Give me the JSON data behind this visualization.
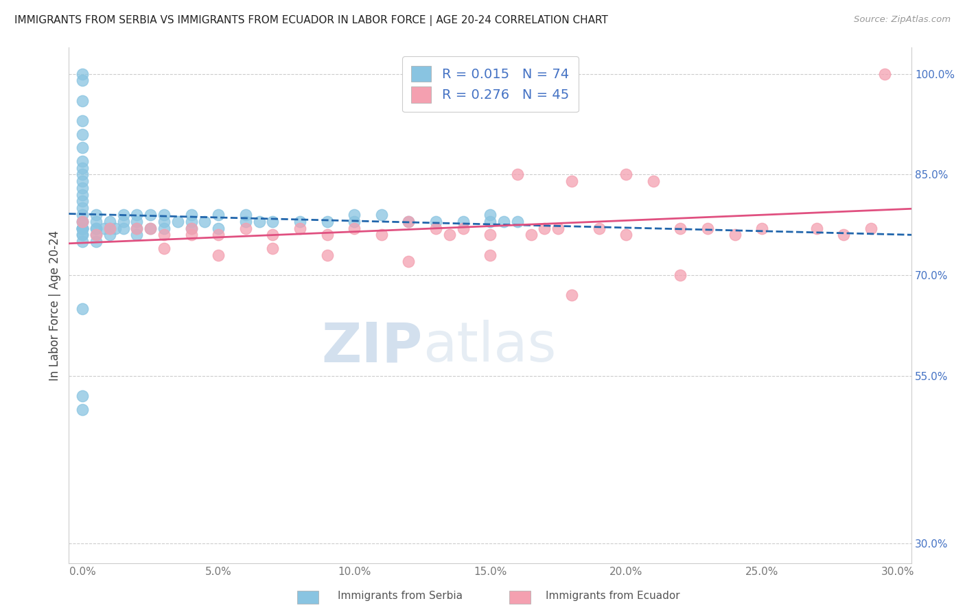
{
  "title": "IMMIGRANTS FROM SERBIA VS IMMIGRANTS FROM ECUADOR IN LABOR FORCE | AGE 20-24 CORRELATION CHART",
  "source": "Source: ZipAtlas.com",
  "ylabel": "In Labor Force | Age 20-24",
  "serbia_color": "#89c4e1",
  "ecuador_color": "#f4a0b0",
  "serbia_line_color": "#2166ac",
  "ecuador_line_color": "#e05080",
  "serbia_R": 0.015,
  "serbia_N": 74,
  "ecuador_R": 0.276,
  "ecuador_N": 45,
  "xlim": [
    -0.005,
    0.305
  ],
  "ylim": [
    0.27,
    1.04
  ],
  "xticks": [
    0.0,
    0.05,
    0.1,
    0.15,
    0.2,
    0.25,
    0.3
  ],
  "xticklabels": [
    "0.0%",
    "5.0%",
    "10.0%",
    "15.0%",
    "20.0%",
    "25.0%",
    "30.0%"
  ],
  "yticks_right": [
    0.3,
    0.55,
    0.7,
    0.85,
    1.0
  ],
  "yticklabels_right": [
    "30.0%",
    "55.0%",
    "70.0%",
    "85.0%",
    "100.0%"
  ],
  "watermark_zip": "ZIP",
  "watermark_atlas": "atlas",
  "serbia_x": [
    0.0,
    0.0,
    0.0,
    0.0,
    0.0,
    0.0,
    0.0,
    0.0,
    0.0,
    0.0,
    0.0,
    0.0,
    0.0,
    0.0,
    0.0,
    0.0,
    0.0,
    0.0,
    0.0,
    0.0,
    0.0,
    0.0,
    0.0,
    0.0,
    0.0,
    0.005,
    0.005,
    0.005,
    0.005,
    0.005,
    0.005,
    0.008,
    0.01,
    0.01,
    0.01,
    0.012,
    0.015,
    0.015,
    0.015,
    0.02,
    0.02,
    0.02,
    0.02,
    0.025,
    0.025,
    0.03,
    0.03,
    0.03,
    0.035,
    0.04,
    0.04,
    0.04,
    0.045,
    0.05,
    0.05,
    0.06,
    0.06,
    0.065,
    0.07,
    0.08,
    0.09,
    0.1,
    0.1,
    0.11,
    0.12,
    0.13,
    0.14,
    0.15,
    0.15,
    0.155,
    0.16,
    0.0,
    0.0,
    0.0
  ],
  "serbia_y": [
    1.0,
    0.99,
    0.96,
    0.93,
    0.91,
    0.89,
    0.87,
    0.86,
    0.85,
    0.84,
    0.83,
    0.82,
    0.81,
    0.8,
    0.79,
    0.78,
    0.78,
    0.77,
    0.77,
    0.77,
    0.77,
    0.77,
    0.76,
    0.76,
    0.75,
    0.79,
    0.78,
    0.77,
    0.77,
    0.76,
    0.75,
    0.77,
    0.78,
    0.77,
    0.76,
    0.77,
    0.79,
    0.78,
    0.77,
    0.79,
    0.78,
    0.77,
    0.76,
    0.79,
    0.77,
    0.79,
    0.78,
    0.77,
    0.78,
    0.79,
    0.78,
    0.77,
    0.78,
    0.79,
    0.77,
    0.79,
    0.78,
    0.78,
    0.78,
    0.78,
    0.78,
    0.79,
    0.78,
    0.79,
    0.78,
    0.78,
    0.78,
    0.79,
    0.78,
    0.78,
    0.78,
    0.65,
    0.52,
    0.5
  ],
  "ecuador_x": [
    0.0,
    0.005,
    0.01,
    0.02,
    0.025,
    0.03,
    0.04,
    0.04,
    0.05,
    0.06,
    0.07,
    0.08,
    0.09,
    0.1,
    0.11,
    0.12,
    0.13,
    0.135,
    0.14,
    0.15,
    0.16,
    0.165,
    0.17,
    0.175,
    0.18,
    0.19,
    0.2,
    0.2,
    0.21,
    0.22,
    0.23,
    0.24,
    0.25,
    0.27,
    0.28,
    0.29,
    0.295,
    0.03,
    0.05,
    0.07,
    0.09,
    0.12,
    0.15,
    0.18,
    0.22
  ],
  "ecuador_y": [
    0.78,
    0.76,
    0.77,
    0.77,
    0.77,
    0.76,
    0.77,
    0.76,
    0.76,
    0.77,
    0.76,
    0.77,
    0.76,
    0.77,
    0.76,
    0.78,
    0.77,
    0.76,
    0.77,
    0.76,
    0.85,
    0.76,
    0.77,
    0.77,
    0.84,
    0.77,
    0.76,
    0.85,
    0.84,
    0.77,
    0.77,
    0.76,
    0.77,
    0.77,
    0.76,
    0.77,
    1.0,
    0.74,
    0.73,
    0.74,
    0.73,
    0.72,
    0.73,
    0.67,
    0.7
  ]
}
